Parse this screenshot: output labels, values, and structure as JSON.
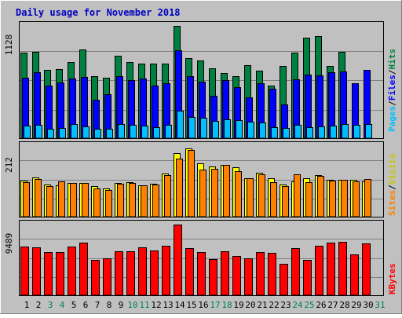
{
  "chart_data": [
    {
      "type": "bar",
      "title": "Daily usage for November 2018",
      "ymax_label": "9489",
      "categories": [
        "1",
        "2",
        "3",
        "4",
        "5",
        "6",
        "7",
        "8",
        "9",
        "10",
        "11",
        "12",
        "13",
        "14",
        "15",
        "16",
        "17",
        "18",
        "19",
        "20",
        "21",
        "22",
        "23",
        "24",
        "25",
        "26",
        "27",
        "28",
        "29",
        "30",
        "31"
      ],
      "weekend_days": [
        "3",
        "4",
        "10",
        "11",
        "17",
        "18",
        "24",
        "25",
        "31"
      ],
      "series": [
        {
          "name": "KBytes",
          "color": "#ff0000",
          "values": [
            6600,
            6500,
            5800,
            5800,
            6600,
            7100,
            4800,
            5000,
            5900,
            5900,
            6500,
            6100,
            6700,
            9489,
            6400,
            5800,
            4900,
            5900,
            5300,
            5000,
            5800,
            5700,
            4300,
            6400,
            4800,
            6700,
            7100,
            7200,
            5500,
            7000,
            null
          ]
        }
      ],
      "ylim": [
        0,
        9489
      ]
    },
    {
      "type": "bar",
      "ymax_label": "212",
      "categories": [
        "1",
        "2",
        "3",
        "4",
        "5",
        "6",
        "7",
        "8",
        "9",
        "10",
        "11",
        "12",
        "13",
        "14",
        "15",
        "16",
        "17",
        "18",
        "19",
        "20",
        "21",
        "22",
        "23",
        "24",
        "25",
        "26",
        "27",
        "28",
        "29",
        "30",
        "31"
      ],
      "series": [
        {
          "name": "Visits",
          "color": "#ffff00",
          "values": [
            110,
            118,
            98,
            95,
            102,
            102,
            93,
            87,
            103,
            105,
            95,
            100,
            130,
            190,
            204,
            160,
            152,
            157,
            148,
            117,
            133,
            117,
            97,
            107,
            116,
            126,
            111,
            112,
            111,
            108,
            null
          ]
        },
        {
          "name": "Sites",
          "color": "#ff8000",
          "values": [
            106,
            113,
            94,
            108,
            102,
            102,
            87,
            82,
            100,
            102,
            95,
            98,
            126,
            174,
            200,
            142,
            144,
            157,
            138,
            117,
            129,
            106,
            94,
            129,
            104,
            123,
            110,
            112,
            108,
            115,
            null
          ]
        }
      ],
      "ylim": [
        0,
        212
      ]
    },
    {
      "type": "bar",
      "ymax_label": "1128",
      "categories": [
        "1",
        "2",
        "3",
        "4",
        "5",
        "6",
        "7",
        "8",
        "9",
        "10",
        "11",
        "12",
        "13",
        "14",
        "15",
        "16",
        "17",
        "18",
        "19",
        "20",
        "21",
        "22",
        "23",
        "24",
        "25",
        "26",
        "27",
        "28",
        "29",
        "30",
        "31"
      ],
      "series": [
        {
          "name": "Hits",
          "color": "#008040",
          "values": [
            862,
            868,
            688,
            694,
            764,
            890,
            623,
            614,
            831,
            768,
            750,
            750,
            750,
            1128,
            807,
            784,
            704,
            657,
            630,
            740,
            679,
            532,
            732,
            864,
            1009,
            1028,
            728,
            870,
            null,
            null,
            null
          ]
        },
        {
          "name": "Files",
          "color": "#0000ff",
          "values": [
            612,
            664,
            536,
            562,
            605,
            615,
            389,
            443,
            629,
            584,
            606,
            536,
            558,
            889,
            629,
            568,
            432,
            591,
            518,
            415,
            557,
            499,
            347,
            596,
            644,
            633,
            664,
            673,
            555,
            688,
            null
          ]
        },
        {
          "name": "Pages",
          "color": "#00bfff",
          "values": [
            134,
            139,
            103,
            110,
            145,
            127,
            99,
            104,
            151,
            139,
            134,
            117,
            143,
            283,
            220,
            210,
            183,
            198,
            185,
            174,
            163,
            120,
            107,
            139,
            119,
            125,
            136,
            149,
            144,
            150,
            null
          ]
        }
      ],
      "ylim": [
        0,
        1128
      ]
    }
  ]
}
